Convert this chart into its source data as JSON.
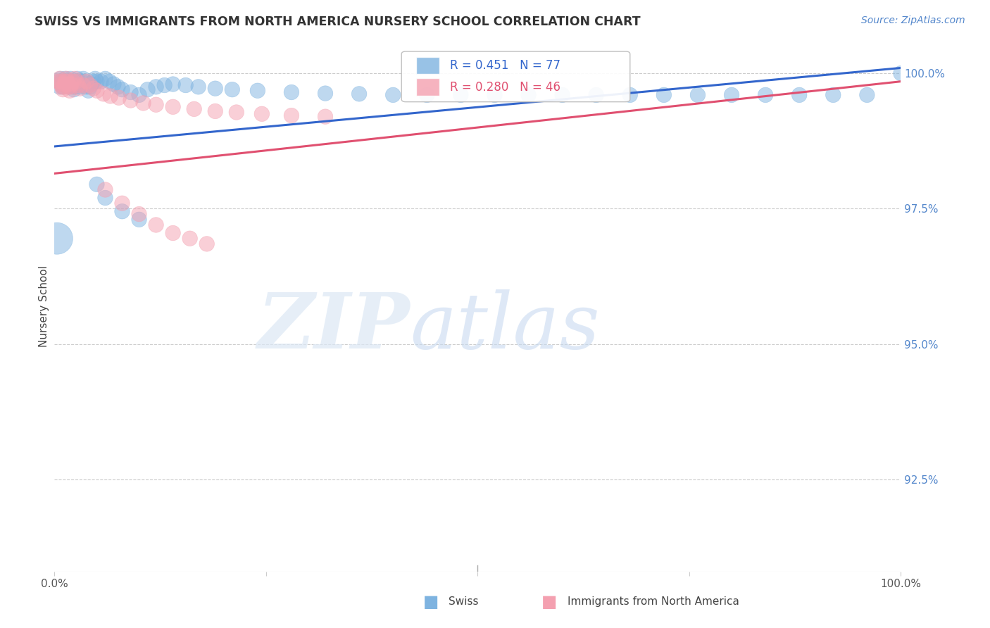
{
  "title": "SWISS VS IMMIGRANTS FROM NORTH AMERICA NURSERY SCHOOL CORRELATION CHART",
  "source": "Source: ZipAtlas.com",
  "ylabel": "Nursery School",
  "ylabel_right_labels": [
    "100.0%",
    "97.5%",
    "95.0%",
    "92.5%"
  ],
  "ylabel_right_values": [
    1.0,
    0.975,
    0.95,
    0.925
  ],
  "xlim": [
    0.0,
    1.0
  ],
  "ylim": [
    0.908,
    1.006
  ],
  "legend_blue_label": "Swiss",
  "legend_pink_label": "Immigrants from North America",
  "R_blue": 0.451,
  "N_blue": 77,
  "R_pink": 0.28,
  "N_pink": 46,
  "blue_color": "#7EB3E0",
  "pink_color": "#F4A0B0",
  "blue_line_color": "#3366CC",
  "pink_line_color": "#E05070",
  "blue_trend_start": 0.9865,
  "blue_trend_end": 1.001,
  "pink_trend_start": 0.9815,
  "pink_trend_end": 0.9985,
  "swiss_x": [
    0.003,
    0.005,
    0.006,
    0.007,
    0.008,
    0.009,
    0.01,
    0.011,
    0.012,
    0.013,
    0.014,
    0.015,
    0.016,
    0.017,
    0.018,
    0.019,
    0.02,
    0.021,
    0.022,
    0.023,
    0.024,
    0.025,
    0.026,
    0.027,
    0.028,
    0.029,
    0.03,
    0.032,
    0.034,
    0.036,
    0.038,
    0.04,
    0.042,
    0.044,
    0.046,
    0.048,
    0.05,
    0.055,
    0.06,
    0.065,
    0.07,
    0.075,
    0.08,
    0.09,
    0.1,
    0.11,
    0.12,
    0.13,
    0.14,
    0.155,
    0.17,
    0.19,
    0.21,
    0.24,
    0.28,
    0.32,
    0.36,
    0.4,
    0.44,
    0.48,
    0.52,
    0.56,
    0.6,
    0.64,
    0.68,
    0.72,
    0.76,
    0.8,
    0.84,
    0.88,
    0.92,
    0.96,
    1.0,
    0.05,
    0.06,
    0.08,
    0.1
  ],
  "swiss_y": [
    0.9695,
    0.9985,
    0.9975,
    0.999,
    0.9985,
    0.998,
    0.9975,
    0.998,
    0.9985,
    0.999,
    0.9985,
    0.998,
    0.9975,
    0.998,
    0.9985,
    0.999,
    0.9985,
    0.998,
    0.9975,
    0.997,
    0.9975,
    0.998,
    0.9985,
    0.999,
    0.9985,
    0.998,
    0.9975,
    0.9985,
    0.999,
    0.9985,
    0.9975,
    0.9968,
    0.9975,
    0.998,
    0.9985,
    0.999,
    0.9985,
    0.9985,
    0.999,
    0.9985,
    0.998,
    0.9975,
    0.997,
    0.9965,
    0.996,
    0.997,
    0.9975,
    0.9978,
    0.998,
    0.9978,
    0.9975,
    0.9972,
    0.997,
    0.9968,
    0.9965,
    0.9963,
    0.9962,
    0.996,
    0.996,
    0.996,
    0.996,
    0.996,
    0.996,
    0.996,
    0.996,
    0.996,
    0.996,
    0.996,
    0.996,
    0.996,
    0.996,
    0.996,
    1.0,
    0.9795,
    0.977,
    0.9745,
    0.973
  ],
  "swiss_sizes_raw": [
    35,
    8,
    8,
    8,
    8,
    8,
    8,
    8,
    8,
    8,
    8,
    8,
    8,
    8,
    8,
    8,
    8,
    8,
    8,
    8,
    8,
    8,
    8,
    8,
    8,
    8,
    8,
    8,
    8,
    8,
    8,
    8,
    8,
    8,
    8,
    8,
    8,
    8,
    8,
    8,
    8,
    8,
    8,
    8,
    8,
    8,
    8,
    8,
    8,
    8,
    8,
    8,
    8,
    8,
    8,
    8,
    8,
    8,
    8,
    8,
    8,
    8,
    8,
    8,
    8,
    8,
    8,
    8,
    8,
    8,
    8,
    8,
    8,
    8,
    8,
    8,
    8
  ],
  "pink_x": [
    0.004,
    0.006,
    0.007,
    0.008,
    0.009,
    0.01,
    0.011,
    0.012,
    0.013,
    0.014,
    0.015,
    0.016,
    0.017,
    0.018,
    0.019,
    0.02,
    0.022,
    0.024,
    0.026,
    0.028,
    0.03,
    0.034,
    0.038,
    0.042,
    0.046,
    0.05,
    0.058,
    0.066,
    0.076,
    0.09,
    0.105,
    0.12,
    0.14,
    0.165,
    0.19,
    0.215,
    0.245,
    0.28,
    0.32,
    0.06,
    0.08,
    0.1,
    0.12,
    0.14,
    0.16,
    0.18
  ],
  "pink_y": [
    0.9985,
    0.999,
    0.9985,
    0.998,
    0.9975,
    0.997,
    0.9975,
    0.998,
    0.9985,
    0.999,
    0.9985,
    0.998,
    0.9975,
    0.9968,
    0.9975,
    0.998,
    0.9985,
    0.999,
    0.9985,
    0.9978,
    0.9972,
    0.9978,
    0.9985,
    0.9978,
    0.9972,
    0.9968,
    0.9962,
    0.9958,
    0.9955,
    0.995,
    0.9945,
    0.9942,
    0.9938,
    0.9934,
    0.993,
    0.9928,
    0.9925,
    0.9922,
    0.992,
    0.9785,
    0.976,
    0.974,
    0.972,
    0.9705,
    0.9695,
    0.9685
  ],
  "pink_sizes_raw": [
    8,
    8,
    8,
    8,
    8,
    8,
    8,
    8,
    8,
    8,
    8,
    8,
    8,
    8,
    8,
    8,
    8,
    8,
    8,
    8,
    8,
    8,
    8,
    8,
    8,
    8,
    8,
    8,
    8,
    8,
    8,
    8,
    8,
    8,
    8,
    8,
    8,
    8,
    8,
    8,
    8,
    8,
    8,
    8,
    8,
    8
  ]
}
